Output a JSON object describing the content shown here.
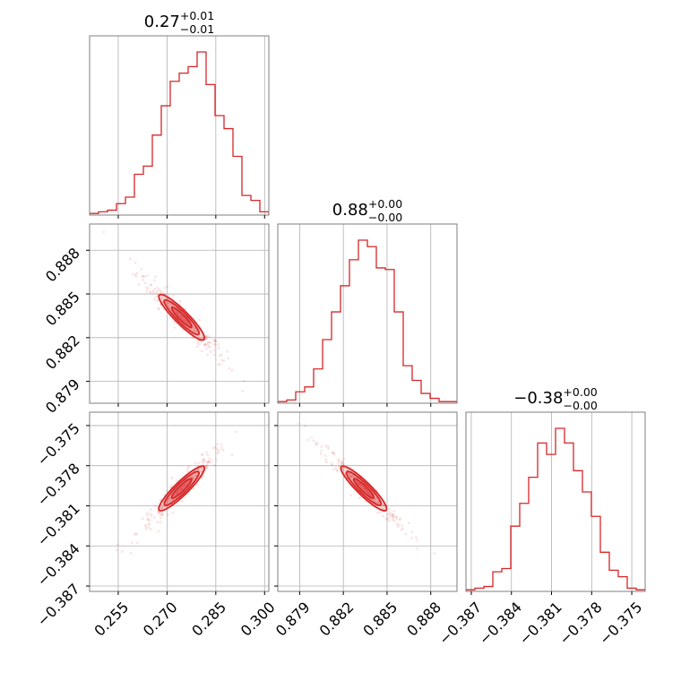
{
  "chart_data": {
    "type": "corner",
    "color": "#d62728",
    "parameters": [
      {
        "title": {
          "value": "0.27",
          "plus": "+0.01",
          "minus": "−0.01"
        },
        "range": [
          0.2462,
          0.3013
        ],
        "ticks": [
          0.255,
          0.27,
          0.285,
          0.3
        ],
        "tick_labels": [
          "0.255",
          "0.270",
          "0.285",
          "0.300"
        ],
        "hist": [
          0.01,
          0.02,
          0.03,
          0.07,
          0.11,
          0.25,
          0.3,
          0.49,
          0.67,
          0.82,
          0.87,
          0.91,
          1.0,
          0.8,
          0.61,
          0.53,
          0.36,
          0.12,
          0.09,
          0.02
        ]
      },
      {
        "title": {
          "value": "0.88",
          "plus": "+0.00",
          "minus": "−0.00"
        },
        "range": [
          0.8775,
          0.8898
        ],
        "ticks": [
          0.879,
          0.882,
          0.885,
          0.888
        ],
        "tick_labels": [
          "0.879",
          "0.882",
          "0.885",
          "0.888"
        ],
        "hist": [
          0.01,
          0.02,
          0.07,
          0.1,
          0.21,
          0.39,
          0.56,
          0.72,
          0.88,
          1.0,
          0.96,
          0.83,
          0.82,
          0.56,
          0.23,
          0.14,
          0.06,
          0.03,
          0.01,
          0.01
        ]
      },
      {
        "title": {
          "value": "−0.38",
          "plus": "+0.00",
          "minus": "−0.00"
        },
        "range": [
          -0.3874,
          -0.374
        ],
        "ticks": [
          -0.387,
          -0.384,
          -0.381,
          -0.378,
          -0.375
        ],
        "tick_labels": [
          "−0.387",
          "−0.384",
          "−0.381",
          "−0.378",
          "−0.375"
        ],
        "hist": [
          0.01,
          0.02,
          0.03,
          0.12,
          0.14,
          0.4,
          0.54,
          0.7,
          0.91,
          0.84,
          1.0,
          0.91,
          0.74,
          0.61,
          0.46,
          0.24,
          0.13,
          0.09,
          0.02,
          0.01
        ]
      }
    ],
    "pairs": [
      {
        "x": 0,
        "y": 1,
        "slope": -0.2227,
        "center": [
          0.2745,
          0.8834
        ],
        "width": 0.001,
        "points": 240
      },
      {
        "x": 0,
        "y": 2,
        "slope": 0.2368,
        "center": [
          0.2745,
          -0.3797
        ],
        "width": 0.001,
        "points": 240
      },
      {
        "x": 1,
        "y": 2,
        "slope": -1.062,
        "center": [
          0.8834,
          -0.3797
        ],
        "width": 0.0008,
        "points": 240
      }
    ],
    "grid": true,
    "contour_levels": 3,
    "xlabel": "",
    "ylabel": ""
  }
}
